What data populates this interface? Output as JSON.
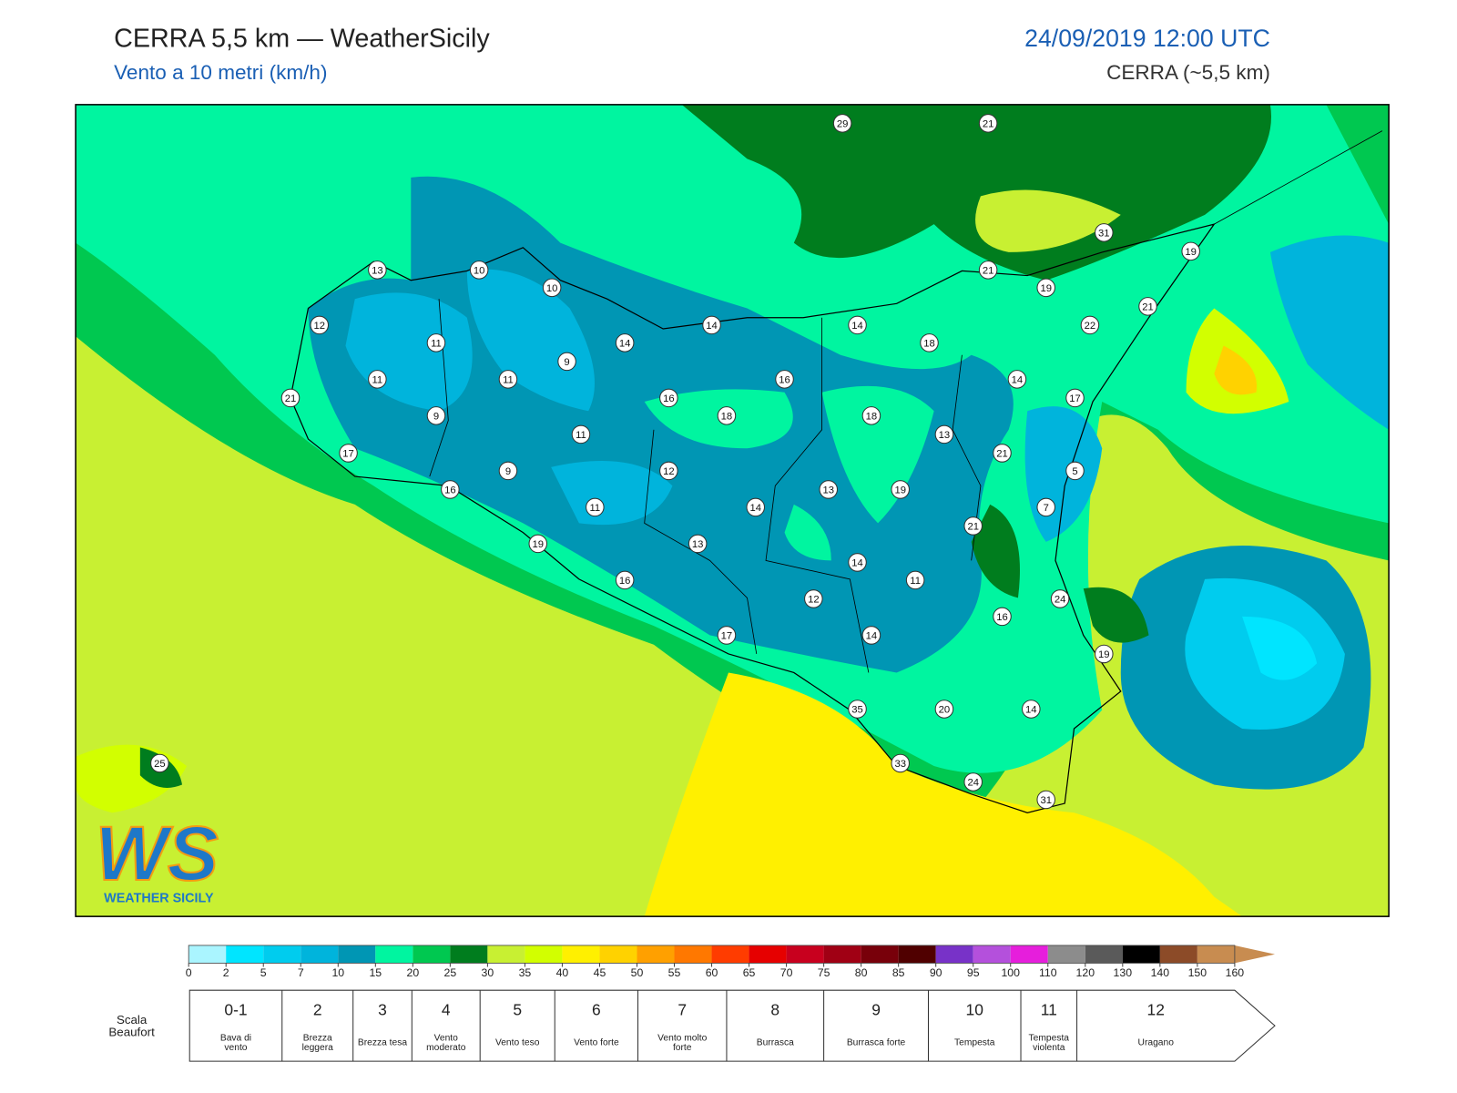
{
  "header": {
    "title": "CERRA 5,5 km — WeatherSicily",
    "subtitle": "Vento a 10 metri (km/h)",
    "date": "24/09/2019 12:00 UTC",
    "model": "CERRA (~5,5 km)"
  },
  "map": {
    "stations": [
      29,
      21,
      31,
      19,
      21,
      19,
      21,
      22,
      13,
      10,
      10,
      12,
      11,
      14,
      14,
      14,
      18,
      9,
      11,
      11,
      16,
      14,
      21,
      16,
      18,
      18,
      17,
      9,
      11,
      13,
      21,
      17,
      9,
      12,
      5,
      16,
      13,
      19,
      11,
      14,
      7,
      21,
      19,
      13,
      14,
      11,
      16,
      12,
      24,
      16,
      17,
      14,
      19,
      35,
      20,
      14,
      25,
      33,
      24,
      31
    ]
  },
  "logo": {
    "mark": "WS",
    "name": "WEATHER SICILY"
  },
  "colorbar": {
    "ticks": [
      0,
      2,
      5,
      7,
      10,
      15,
      20,
      25,
      30,
      35,
      40,
      45,
      50,
      55,
      60,
      65,
      70,
      75,
      80,
      85,
      90,
      95,
      100,
      110,
      120,
      130,
      140,
      150,
      160
    ],
    "colors": [
      "#aaf5ff",
      "#00e5ff",
      "#00ccee",
      "#00b4dc",
      "#0096b4",
      "#00f5a0",
      "#00c850",
      "#007d1e",
      "#c8f032",
      "#d2ff00",
      "#fff000",
      "#ffd200",
      "#ffa000",
      "#ff7800",
      "#ff3c00",
      "#e60000",
      "#c8001e",
      "#a00014",
      "#78000a",
      "#500000",
      "#7832c8",
      "#b450dc",
      "#e61edc",
      "#8c8c8c",
      "#5a5a5a",
      "#000000",
      "#8c4b28",
      "#c88c50"
    ]
  },
  "beaufort": {
    "label": "Scala Beaufort",
    "levels": [
      {
        "force": "0-1",
        "description": "Bava di vento"
      },
      {
        "force": "2",
        "description": "Brezza leggera"
      },
      {
        "force": "3",
        "description": "Brezza tesa"
      },
      {
        "force": "4",
        "description": "Vento moderato"
      },
      {
        "force": "5",
        "description": "Vento teso"
      },
      {
        "force": "6",
        "description": "Vento forte"
      },
      {
        "force": "7",
        "description": "Vento molto forte"
      },
      {
        "force": "8",
        "description": "Burrasca"
      },
      {
        "force": "9",
        "description": "Burrasca forte"
      },
      {
        "force": "10",
        "description": "Tempesta"
      },
      {
        "force": "11",
        "description": "Tempesta violenta"
      },
      {
        "force": "12",
        "description": "Uragano"
      }
    ]
  }
}
